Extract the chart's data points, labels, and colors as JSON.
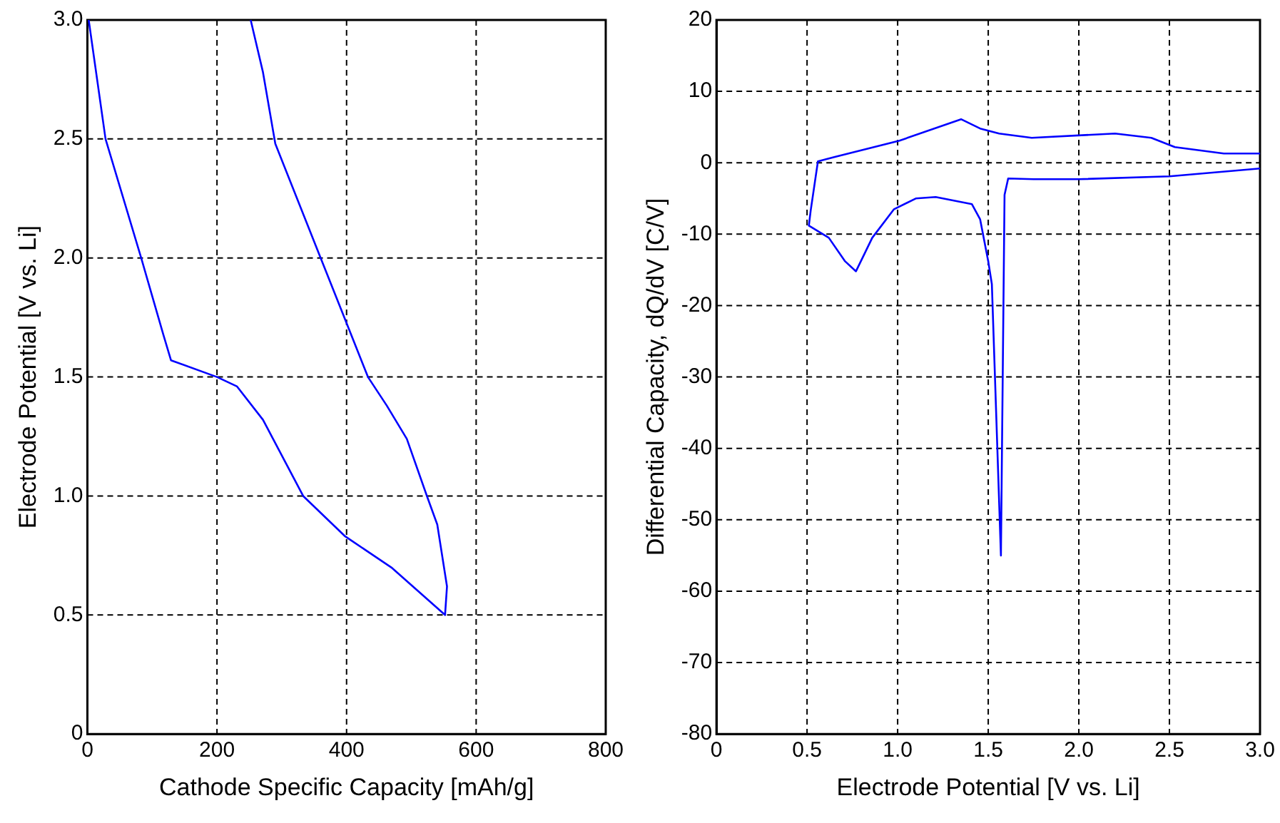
{
  "chart_data": [
    {
      "type": "line",
      "xlabel": "Cathode Specific Capacity [mAh/g]",
      "ylabel": "Electrode Potential [V vs. Li]",
      "xlim": [
        0,
        800
      ],
      "xticks": [
        0,
        200,
        400,
        600,
        800
      ],
      "ylim": [
        0,
        3
      ],
      "yticks": [
        0,
        {
          "value": 0.5,
          "label": "0.5"
        },
        {
          "value": 1,
          "label": "1.0"
        },
        {
          "value": 1.5,
          "label": "1.5"
        },
        {
          "value": 2,
          "label": "2.0"
        },
        {
          "value": 2.5,
          "label": "2.5"
        },
        {
          "value": 3,
          "label": "3.0"
        }
      ],
      "grid": true,
      "legend": false,
      "marker": "none",
      "line_style": "solid",
      "series": [
        {
          "color": "#0000ff",
          "x": [
            2,
            28,
            83,
            117,
            129,
            200,
            231,
            271,
            333,
            398,
            469,
            552,
            555,
            540,
            524,
            493,
            462,
            433,
            398,
            360,
            290,
            271,
            252
          ],
          "values": [
            3.0,
            2.5,
            2.0,
            1.68,
            1.57,
            1.5,
            1.46,
            1.32,
            1.0,
            0.83,
            0.7,
            0.5,
            0.62,
            0.88,
            1.0,
            1.24,
            1.38,
            1.5,
            1.74,
            2.0,
            2.48,
            2.78,
            3.0
          ]
        }
      ]
    },
    {
      "type": "line",
      "xlabel": "Electrode Potential [V vs. Li]",
      "ylabel": "Differential Capacity, dQ/dV [C/V]",
      "xlim": [
        0,
        3
      ],
      "xticks": [
        0,
        {
          "value": 0.5,
          "label": "0.5"
        },
        {
          "value": 1,
          "label": "1.0"
        },
        {
          "value": 1.5,
          "label": "1.5"
        },
        {
          "value": 2,
          "label": "2.0"
        },
        {
          "value": 2.5,
          "label": "2.5"
        },
        {
          "value": 3,
          "label": "3.0"
        }
      ],
      "ylim": [
        -80,
        20
      ],
      "yticks": [
        -80,
        -70,
        -60,
        -50,
        -40,
        -30,
        -20,
        -10,
        0,
        10,
        20
      ],
      "grid": true,
      "legend": false,
      "marker": "none",
      "line_style": "solid",
      "series": [
        {
          "color": "#0000ff",
          "x": [
            3.0,
            2.5,
            2.0,
            1.75,
            1.61,
            1.59,
            1.57,
            1.52,
            1.5,
            1.455,
            1.41,
            1.21,
            1.1,
            0.98,
            0.86,
            0.77,
            0.71,
            0.62,
            0.51,
            0.52,
            0.56,
            0.65,
            1.01,
            1.35,
            1.455,
            1.56,
            1.74,
            2.2,
            2.4,
            2.53,
            2.8,
            3.0
          ],
          "values": [
            -0.8,
            -1.9,
            -2.3,
            -2.3,
            -2.2,
            -4.5,
            -55,
            -17,
            -13.8,
            -7.9,
            -5.8,
            -4.8,
            -5,
            -6.5,
            -10.5,
            -15.2,
            -13.8,
            -10.5,
            -8.8,
            -6.7,
            0.2,
            0.8,
            3.1,
            6.1,
            4.8,
            4.1,
            3.5,
            4.1,
            3.5,
            2.2,
            1.3,
            1.3
          ]
        }
      ]
    }
  ]
}
